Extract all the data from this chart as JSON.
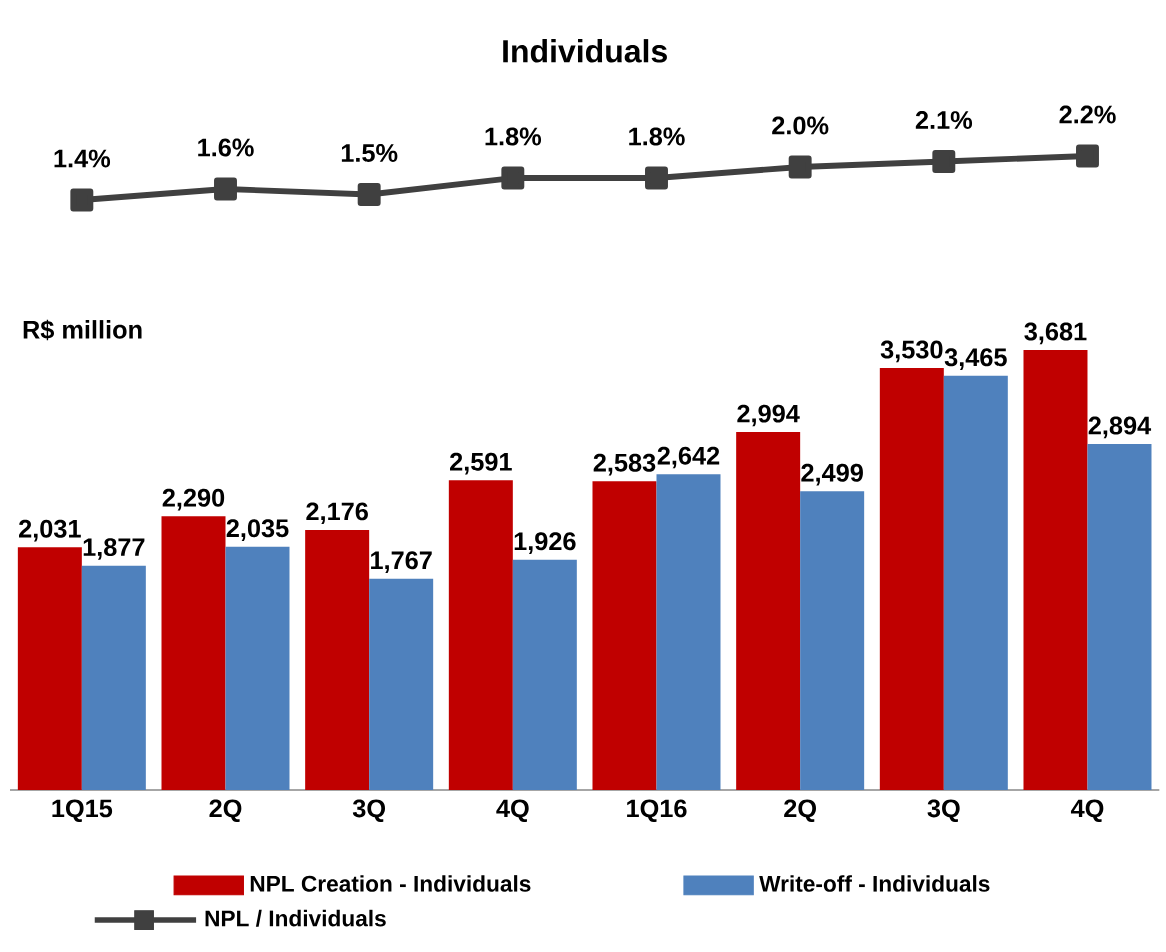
{
  "chart_data": [
    {
      "type": "line",
      "title": "Individuals",
      "categories": [
        null,
        null,
        null,
        null,
        null,
        null,
        null,
        null
      ],
      "tick_labels": false,
      "legend": "bottom",
      "series": [
        {
          "name": "NPL / Individuals",
          "color": "#404040",
          "marker": "square",
          "values": [
            1.4,
            1.6,
            1.5,
            1.8,
            1.8,
            2.0,
            2.1,
            2.2
          ],
          "value_labels": [
            "1.4%",
            "1.6%",
            "1.5%",
            "1.8%",
            "1.8%",
            "2.0%",
            "2.1%",
            "2.2%"
          ]
        }
      ]
    },
    {
      "type": "bar",
      "ylabel": "R$ million",
      "categories": [
        "1Q15",
        "2Q",
        "3Q",
        "4Q",
        "1Q16",
        "2Q",
        "3Q",
        "4Q"
      ],
      "tick_labels": "x",
      "legend": "bottom",
      "series": [
        {
          "name": "NPL Creation - Individuals",
          "color": "#c00000",
          "values": [
            2031,
            2290,
            2176,
            2591,
            2583,
            2994,
            3530,
            3681
          ],
          "value_labels": [
            "2,031",
            "2,290",
            "2,176",
            "2,591",
            "2,583",
            "2,994",
            "3,530",
            "3,681"
          ]
        },
        {
          "name": "Write-off - Individuals",
          "color": "#4f81bd",
          "values": [
            1877,
            2035,
            1767,
            1926,
            2642,
            2499,
            3465,
            2894
          ],
          "value_labels": [
            "1,877",
            "2,035",
            "1,767",
            "1,926",
            "2,642",
            "2,499",
            "3,465",
            "2,894"
          ]
        }
      ]
    }
  ]
}
